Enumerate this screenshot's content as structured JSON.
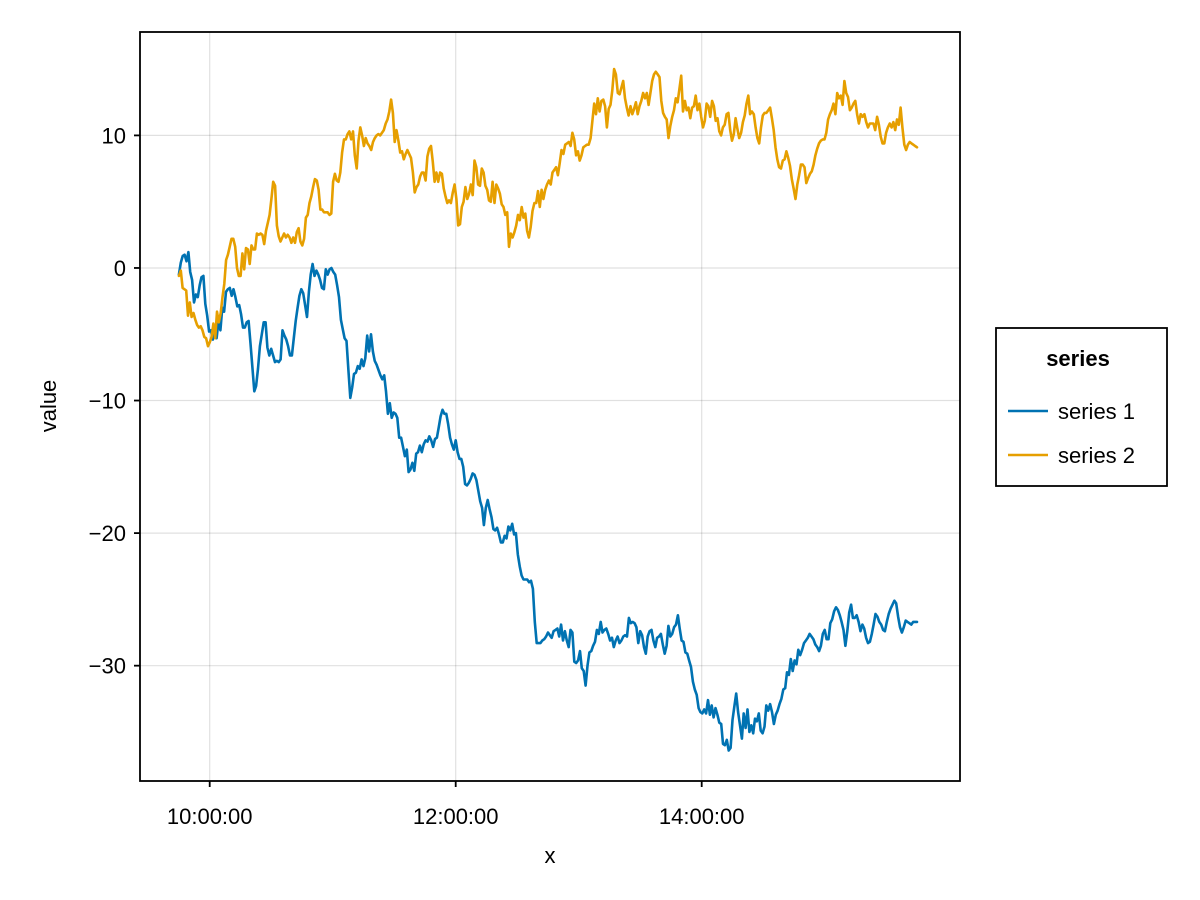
{
  "chart_data": {
    "type": "line",
    "title": "",
    "xlabel": "x",
    "ylabel": "value",
    "x_start": "09:45:00",
    "x_end": "15:45:00",
    "xlim": [
      "09:26:00",
      "16:06:00"
    ],
    "ylim": [
      -38.7,
      17.8
    ],
    "x_ticks": [
      "10:00:00",
      "12:00:00",
      "14:00:00"
    ],
    "y_ticks": [
      10,
      0,
      -10,
      -20,
      -30
    ],
    "y_tick_labels": [
      "10",
      "0",
      "−10",
      "−20",
      "−30"
    ],
    "grid": true,
    "legend": {
      "title": "series",
      "position": "right"
    },
    "series": [
      {
        "name": "series 1",
        "color": "#0072b2",
        "values": [
          -0.5,
          0.4,
          0.9,
          1.0,
          0.5,
          1.2,
          -0.3,
          -0.9,
          -2.6,
          -2.0,
          -2.2,
          -1.3,
          -0.7,
          -0.6,
          -2.7,
          -3.6,
          -4.8,
          -4.7,
          -5.4,
          -4.6,
          -5.3,
          -4.0,
          -4.7,
          -3.0,
          -3.3,
          -1.8,
          -1.6,
          -1.5,
          -2.1,
          -1.6,
          -2.2,
          -2.9,
          -2.8,
          -3.5,
          -4.5,
          -4.5,
          -4.1,
          -4.0,
          -5.7,
          -7.5,
          -9.3,
          -8.9,
          -7.6,
          -5.9,
          -5.0,
          -4.1,
          -4.1,
          -6.0,
          -6.6,
          -6.1,
          -6.6,
          -7.1,
          -7.0,
          -7.1,
          -6.9,
          -4.7,
          -5.1,
          -5.4,
          -5.9,
          -6.6,
          -6.6,
          -5.3,
          -4.0,
          -3.0,
          -2.1,
          -1.6,
          -1.9,
          -2.8,
          -3.7,
          -1.8,
          -0.5,
          0.3,
          -0.6,
          -0.2,
          -0.5,
          -0.9,
          -1.5,
          -1.6,
          -0.1,
          -0.5,
          -0.1,
          0.0,
          -0.3,
          -0.5,
          -1.3,
          -2.2,
          -3.9,
          -4.6,
          -5.3,
          -5.5,
          -7.7,
          -9.8,
          -9.0,
          -8.0,
          -7.9,
          -7.4,
          -7.6,
          -6.9,
          -7.4,
          -6.8,
          -5.1,
          -6.3,
          -5.0,
          -6.3,
          -7.0,
          -7.3,
          -7.7,
          -8.1,
          -8.4,
          -8.1,
          -9.3,
          -11.0,
          -10.2,
          -11.3,
          -10.9,
          -11.0,
          -11.3,
          -12.8,
          -12.8,
          -13.5,
          -14.2,
          -13.7,
          -15.4,
          -15.2,
          -14.7,
          -15.3,
          -14.0,
          -13.9,
          -13.4,
          -13.9,
          -13.3,
          -13.0,
          -13.1,
          -12.7,
          -13.0,
          -13.5,
          -12.9,
          -12.8,
          -12.0,
          -11.2,
          -10.7,
          -11.0,
          -11.0,
          -11.8,
          -12.8,
          -13.3,
          -13.7,
          -13.0,
          -13.9,
          -14.4,
          -14.4,
          -15.0,
          -16.3,
          -16.4,
          -16.2,
          -15.9,
          -15.5,
          -15.6,
          -16.0,
          -16.8,
          -17.6,
          -18.1,
          -19.4,
          -18.1,
          -17.5,
          -18.2,
          -18.8,
          -19.7,
          -19.8,
          -19.6,
          -20.1,
          -20.7,
          -20.7,
          -20.2,
          -20.4,
          -19.5,
          -19.8,
          -19.3,
          -20.1,
          -20.0,
          -21.6,
          -22.5,
          -23.2,
          -23.5,
          -23.5,
          -23.5,
          -23.7,
          -23.6,
          -24.2,
          -26.7,
          -28.3,
          -28.3,
          -28.3,
          -28.1,
          -28.0,
          -27.8,
          -27.5,
          -27.7,
          -27.9,
          -27.4,
          -27.3,
          -27.2,
          -27.8,
          -26.9,
          -28.1,
          -27.4,
          -28.1,
          -28.6,
          -27.3,
          -27.5,
          -29.7,
          -29.8,
          -29.6,
          -28.9,
          -30.2,
          -30.4,
          -31.5,
          -30.0,
          -29.0,
          -28.9,
          -28.5,
          -28.2,
          -27.3,
          -27.6,
          -26.7,
          -27.5,
          -27.3,
          -27.2,
          -27.6,
          -28.1,
          -27.9,
          -28.6,
          -28.1,
          -27.8,
          -28.3,
          -28.1,
          -27.8,
          -27.7,
          -27.8,
          -26.4,
          -26.8,
          -26.7,
          -26.8,
          -27.1,
          -28.3,
          -27.4,
          -27.7,
          -28.6,
          -29.1,
          -27.8,
          -27.4,
          -27.3,
          -28.1,
          -28.6,
          -27.9,
          -27.8,
          -27.6,
          -28.4,
          -29.1,
          -28.5,
          -27.0,
          -27.8,
          -27.6,
          -27.1,
          -26.9,
          -26.2,
          -27.2,
          -28.1,
          -28.2,
          -29.0,
          -29.1,
          -29.6,
          -30.1,
          -31.2,
          -31.8,
          -32.2,
          -33.2,
          -33.5,
          -33.6,
          -33.3,
          -33.6,
          -32.6,
          -33.7,
          -33.0,
          -33.9,
          -33.2,
          -33.7,
          -34.3,
          -34.4,
          -35.9,
          -36.0,
          -35.6,
          -36.4,
          -36.2,
          -34.1,
          -33.1,
          -32.1,
          -33.5,
          -34.5,
          -35.5,
          -33.6,
          -34.7,
          -33.3,
          -35.0,
          -34.5,
          -35.1,
          -34.0,
          -34.2,
          -33.6,
          -34.9,
          -35.1,
          -34.6,
          -33.0,
          -33.4,
          -32.9,
          -33.5,
          -34.4,
          -33.7,
          -33.4,
          -32.9,
          -32.5,
          -31.8,
          -31.7,
          -30.5,
          -30.7,
          -29.5,
          -30.4,
          -29.6,
          -29.9,
          -28.8,
          -29.2,
          -28.8,
          -28.3,
          -28.1,
          -27.9,
          -27.6,
          -27.8,
          -28.0,
          -28.4,
          -28.6,
          -28.9,
          -28.5,
          -27.6,
          -27.3,
          -28.0,
          -28.0,
          -26.8,
          -26.5,
          -25.9,
          -25.6,
          -25.8,
          -26.2,
          -26.7,
          -27.3,
          -28.5,
          -27.4,
          -26.0,
          -25.4,
          -26.4,
          -26.4,
          -26.2,
          -26.7,
          -27.4,
          -26.9,
          -27.2,
          -27.9,
          -28.3,
          -28.2,
          -27.6,
          -26.9,
          -26.1,
          -26.3,
          -26.7,
          -26.9,
          -27.3,
          -27.4,
          -26.7,
          -26.1,
          -25.7,
          -25.4,
          -25.1,
          -25.3,
          -26.3,
          -27.1,
          -27.5,
          -27.1,
          -26.6,
          -26.7,
          -26.8,
          -26.9,
          -26.7,
          -26.7,
          -26.7
        ]
      },
      {
        "name": "series 2",
        "color": "#e69f00",
        "values": [
          -0.6,
          -0.2,
          -1.5,
          -1.6,
          -1.7,
          -3.6,
          -2.6,
          -3.7,
          -3.4,
          -3.9,
          -4.3,
          -4.5,
          -4.4,
          -4.7,
          -5.2,
          -5.3,
          -5.9,
          -5.6,
          -5.2,
          -4.2,
          -5.3,
          -3.3,
          -4.1,
          -3.4,
          -2.2,
          -1.2,
          0.6,
          1.0,
          1.6,
          2.2,
          2.2,
          1.6,
          0.0,
          -0.6,
          -0.6,
          1.1,
          -0.1,
          1.5,
          1.4,
          0.3,
          1.7,
          1.4,
          1.4,
          2.6,
          2.5,
          2.6,
          2.5,
          1.8,
          2.8,
          3.4,
          4.0,
          5.2,
          6.5,
          6.2,
          3.2,
          2.4,
          2.0,
          2.3,
          2.6,
          2.3,
          2.5,
          2.3,
          1.9,
          2.3,
          1.9,
          2.7,
          3.0,
          2.0,
          1.7,
          2.2,
          3.8,
          4.0,
          4.9,
          5.4,
          6.1,
          6.7,
          6.6,
          5.9,
          4.4,
          4.4,
          4.2,
          4.2,
          4.2,
          4.0,
          4.1,
          6.5,
          7.1,
          6.6,
          6.5,
          7.2,
          8.7,
          9.7,
          9.7,
          10.1,
          10.3,
          9.7,
          10.3,
          8.5,
          7.5,
          9.6,
          10.6,
          10.0,
          9.2,
          9.8,
          9.4,
          9.2,
          8.9,
          9.5,
          9.8,
          10.0,
          10.1,
          10.0,
          10.2,
          10.4,
          10.9,
          11.2,
          11.8,
          12.7,
          11.7,
          9.5,
          10.4,
          9.6,
          8.7,
          8.8,
          8.2,
          8.6,
          8.9,
          8.6,
          8.3,
          7.2,
          5.7,
          6.1,
          6.3,
          6.9,
          7.2,
          7.2,
          6.6,
          8.4,
          9.0,
          9.2,
          8.0,
          6.5,
          7.2,
          6.5,
          7.2,
          7.1,
          6.0,
          5.4,
          4.9,
          5.1,
          4.9,
          5.7,
          6.3,
          5.2,
          3.2,
          3.3,
          4.6,
          5.0,
          6.1,
          5.2,
          5.6,
          6.3,
          5.5,
          8.1,
          7.6,
          6.3,
          6.2,
          7.5,
          7.2,
          6.2,
          5.9,
          5.1,
          5.0,
          6.5,
          4.9,
          6.3,
          6.0,
          5.6,
          4.8,
          4.6,
          4.0,
          4.2,
          1.6,
          2.6,
          2.3,
          2.7,
          3.2,
          4.0,
          3.6,
          4.6,
          3.8,
          4.1,
          2.8,
          2.3,
          3.1,
          4.3,
          4.9,
          4.9,
          5.8,
          4.6,
          5.9,
          5.2,
          5.9,
          6.3,
          6.6,
          6.3,
          7.2,
          7.4,
          7.6,
          7.0,
          7.9,
          8.9,
          8.6,
          9.3,
          9.4,
          9.5,
          9.2,
          10.2,
          9.7,
          8.5,
          8.8,
          8.1,
          8.5,
          9.1,
          9.2,
          9.3,
          9.3,
          9.8,
          11.1,
          12.4,
          11.6,
          12.8,
          11.8,
          12.6,
          12.7,
          12.2,
          10.6,
          12.0,
          12.3,
          13.4,
          15.0,
          14.6,
          13.2,
          13.1,
          13.6,
          14.1,
          12.8,
          12.1,
          11.5,
          12.2,
          11.6,
          12.0,
          12.5,
          11.6,
          12.2,
          12.6,
          13.2,
          12.8,
          13.2,
          12.3,
          13.2,
          14.1,
          14.6,
          14.8,
          14.6,
          14.4,
          12.6,
          11.7,
          11.4,
          11.2,
          9.8,
          10.7,
          11.4,
          11.9,
          12.8,
          12.5,
          13.5,
          14.5,
          11.8,
          12.6,
          11.9,
          12.1,
          11.3,
          12.1,
          12.2,
          13.0,
          11.9,
          12.4,
          11.4,
          10.6,
          11.1,
          12.4,
          12.2,
          11.4,
          12.6,
          12.2,
          11.1,
          11.3,
          10.3,
          10.0,
          10.6,
          10.8,
          11.6,
          11.7,
          10.4,
          9.6,
          10.1,
          11.3,
          10.5,
          9.8,
          10.2,
          11.0,
          11.5,
          12.4,
          13.0,
          11.6,
          11.8,
          11.6,
          10.6,
          9.8,
          9.4,
          10.6,
          11.5,
          11.7,
          11.7,
          11.9,
          12.1,
          11.3,
          10.4,
          9.1,
          8.2,
          7.6,
          7.5,
          8.1,
          8.2,
          8.8,
          8.3,
          7.7,
          6.7,
          6.0,
          5.2,
          6.3,
          7.0,
          7.8,
          7.8,
          7.6,
          6.4,
          6.8,
          7.1,
          7.3,
          7.8,
          8.5,
          9.0,
          9.4,
          9.6,
          9.7,
          9.7,
          10.2,
          11.2,
          11.6,
          11.9,
          12.4,
          11.6,
          13.2,
          12.8,
          13.0,
          12.3,
          14.1,
          13.2,
          12.9,
          11.9,
          12.1,
          12.4,
          12.6,
          11.6,
          10.9,
          11.6,
          11.4,
          11.6,
          11.0,
          10.6,
          10.9,
          10.9,
          10.9,
          10.4,
          11.4,
          10.8,
          9.9,
          9.4,
          9.4,
          10.2,
          10.6,
          10.9,
          10.6,
          11.0,
          10.4,
          11.2,
          10.8,
          12.1,
          10.6,
          9.3,
          8.9,
          9.3,
          9.5,
          9.4,
          9.3,
          9.2,
          9.1
        ]
      }
    ]
  }
}
